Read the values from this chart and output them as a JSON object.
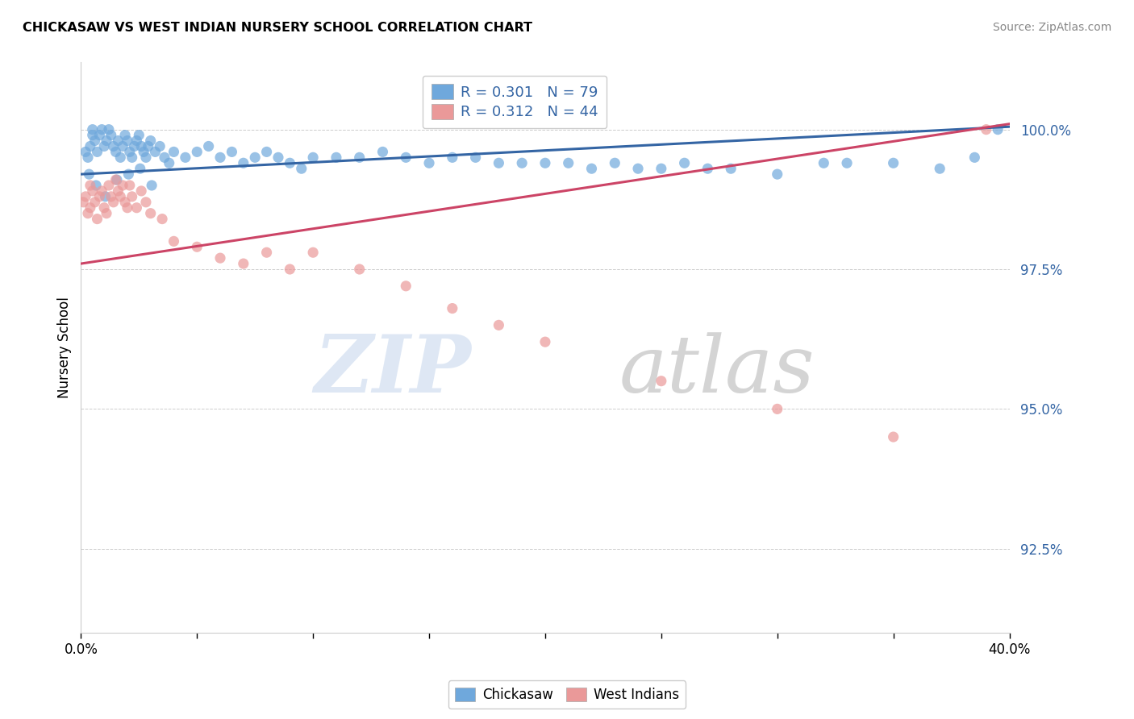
{
  "title": "CHICKASAW VS WEST INDIAN NURSERY SCHOOL CORRELATION CHART",
  "source": "Source: ZipAtlas.com",
  "ylabel": "Nursery School",
  "ytick_labels": [
    "92.5%",
    "95.0%",
    "97.5%",
    "100.0%"
  ],
  "ytick_values": [
    92.5,
    95.0,
    97.5,
    100.0
  ],
  "xmin": 0.0,
  "xmax": 40.0,
  "ymin": 91.0,
  "ymax": 101.2,
  "legend_text_blue": "R = 0.301   N = 79",
  "legend_text_pink": "R = 0.312   N = 44",
  "blue_color": "#6fa8dc",
  "pink_color": "#ea9999",
  "blue_line_color": "#3465a4",
  "pink_line_color": "#cc4466",
  "chickasaw_label": "Chickasaw",
  "westindians_label": "West Indians",
  "blue_scatter_x": [
    0.2,
    0.3,
    0.4,
    0.5,
    0.5,
    0.6,
    0.7,
    0.8,
    0.9,
    1.0,
    1.1,
    1.2,
    1.3,
    1.4,
    1.5,
    1.6,
    1.7,
    1.8,
    1.9,
    2.0,
    2.1,
    2.2,
    2.3,
    2.4,
    2.5,
    2.6,
    2.7,
    2.8,
    2.9,
    3.0,
    3.2,
    3.4,
    3.6,
    3.8,
    4.0,
    4.5,
    5.0,
    5.5,
    6.0,
    6.5,
    7.0,
    7.5,
    8.0,
    8.5,
    9.0,
    9.5,
    10.0,
    11.0,
    12.0,
    13.0,
    14.0,
    15.0,
    16.0,
    17.0,
    18.0,
    19.0,
    20.0,
    21.0,
    22.0,
    23.0,
    24.0,
    25.0,
    26.0,
    27.0,
    28.0,
    30.0,
    32.0,
    33.0,
    35.0,
    37.0,
    38.5,
    39.5,
    0.35,
    0.65,
    1.05,
    1.55,
    2.05,
    2.55,
    3.05
  ],
  "blue_scatter_y": [
    99.6,
    99.5,
    99.7,
    99.9,
    100.0,
    99.8,
    99.6,
    99.9,
    100.0,
    99.7,
    99.8,
    100.0,
    99.9,
    99.7,
    99.6,
    99.8,
    99.5,
    99.7,
    99.9,
    99.8,
    99.6,
    99.5,
    99.7,
    99.8,
    99.9,
    99.7,
    99.6,
    99.5,
    99.7,
    99.8,
    99.6,
    99.7,
    99.5,
    99.4,
    99.6,
    99.5,
    99.6,
    99.7,
    99.5,
    99.6,
    99.4,
    99.5,
    99.6,
    99.5,
    99.4,
    99.3,
    99.5,
    99.5,
    99.5,
    99.6,
    99.5,
    99.4,
    99.5,
    99.5,
    99.4,
    99.4,
    99.4,
    99.4,
    99.3,
    99.4,
    99.3,
    99.3,
    99.4,
    99.3,
    99.3,
    99.2,
    99.4,
    99.4,
    99.4,
    99.3,
    99.5,
    100.0,
    99.2,
    99.0,
    98.8,
    99.1,
    99.2,
    99.3,
    99.0
  ],
  "pink_scatter_x": [
    0.1,
    0.2,
    0.3,
    0.4,
    0.4,
    0.5,
    0.6,
    0.7,
    0.8,
    0.9,
    1.0,
    1.1,
    1.2,
    1.3,
    1.4,
    1.5,
    1.6,
    1.7,
    1.8,
    1.9,
    2.0,
    2.1,
    2.2,
    2.4,
    2.6,
    2.8,
    3.0,
    3.5,
    4.0,
    5.0,
    6.0,
    7.0,
    8.0,
    9.0,
    10.0,
    12.0,
    14.0,
    16.0,
    18.0,
    20.0,
    25.0,
    30.0,
    35.0,
    39.0
  ],
  "pink_scatter_y": [
    98.7,
    98.8,
    98.5,
    99.0,
    98.6,
    98.9,
    98.7,
    98.4,
    98.8,
    98.9,
    98.6,
    98.5,
    99.0,
    98.8,
    98.7,
    99.1,
    98.9,
    98.8,
    99.0,
    98.7,
    98.6,
    99.0,
    98.8,
    98.6,
    98.9,
    98.7,
    98.5,
    98.4,
    98.0,
    97.9,
    97.7,
    97.6,
    97.8,
    97.5,
    97.8,
    97.5,
    97.2,
    96.8,
    96.5,
    96.2,
    95.5,
    95.0,
    94.5,
    100.0
  ],
  "blue_trend_x": [
    0.0,
    40.0
  ],
  "blue_trend_y": [
    99.2,
    100.05
  ],
  "pink_trend_x": [
    0.0,
    40.0
  ],
  "pink_trend_y": [
    97.6,
    100.1
  ],
  "watermark_zip": "ZIP",
  "watermark_atlas": "atlas",
  "marker_size": 90
}
